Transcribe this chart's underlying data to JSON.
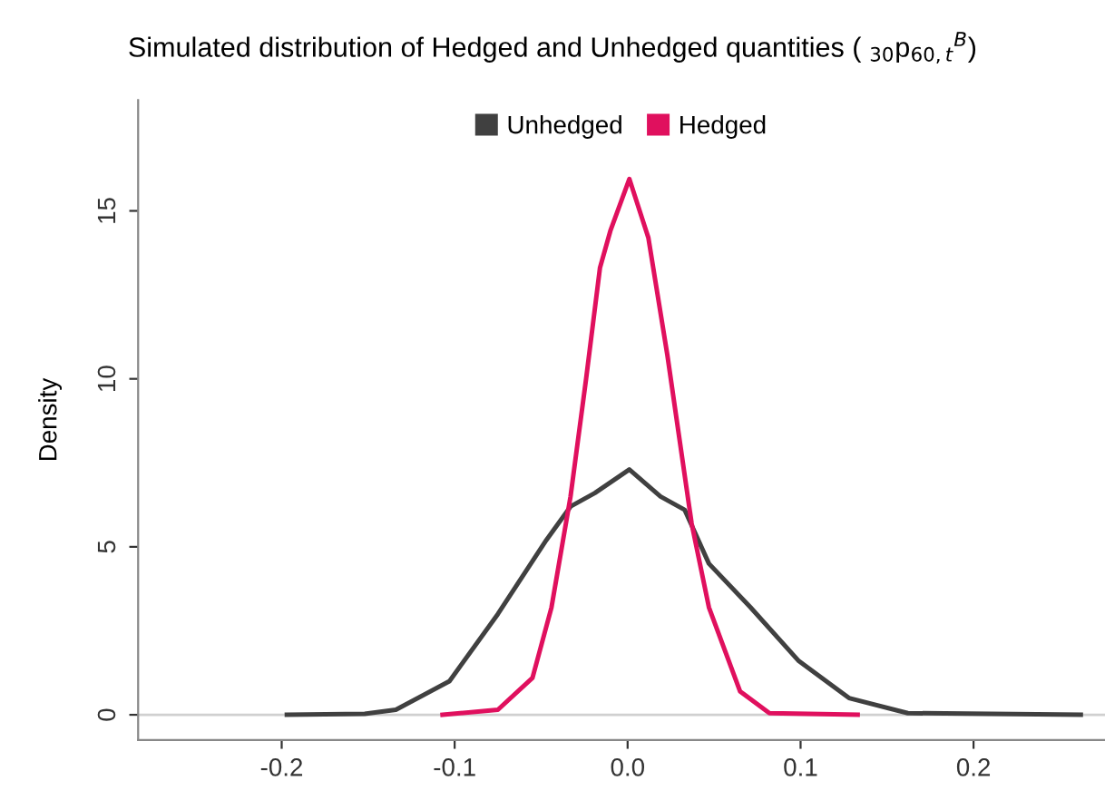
{
  "chart_data": {
    "type": "line",
    "title": "Simulated distribution of Hedged and Unhedged quantities ( $_{30}$p$_{60,t}$$^{B}$)",
    "ylabel": "Density",
    "series": [
      {
        "name": "Unhedged",
        "color": "#404040",
        "x": [
          -0.197,
          -0.152,
          -0.134,
          -0.103,
          -0.075,
          -0.047,
          -0.033,
          -0.019,
          0.001,
          0.019,
          0.033,
          0.047,
          0.071,
          0.099,
          0.128,
          0.162,
          0.262
        ],
        "values": [
          0,
          0.03,
          0.15,
          1.0,
          3.0,
          5.2,
          6.2,
          6.6,
          7.3,
          6.5,
          6.1,
          4.5,
          3.2,
          1.6,
          0.5,
          0.05,
          0
        ]
      },
      {
        "name": "Hedged",
        "color": "#e0105e",
        "x": [
          -0.107,
          -0.075,
          -0.055,
          -0.044,
          -0.033,
          -0.024,
          -0.016,
          -0.01,
          0.001,
          0.012,
          0.023,
          0.037,
          0.047,
          0.065,
          0.082,
          0.133
        ],
        "values": [
          0,
          0.15,
          1.1,
          3.2,
          6.5,
          10,
          13.3,
          14.4,
          15.95,
          14.2,
          10.7,
          5.7,
          3.2,
          0.7,
          0.05,
          0
        ]
      }
    ],
    "xlim": [
      -0.283,
      0.276
    ],
    "ylim": [
      -0.75,
      18.3
    ],
    "xticks": [
      -0.2,
      -0.1,
      {
        "value": 0,
        "label": "0.0"
      },
      0.1,
      0.2
    ],
    "yticks": [
      0,
      5,
      10,
      15
    ],
    "ref_lines": [
      {
        "axis": "y",
        "value": 0,
        "color": "#d0d0d0"
      }
    ],
    "legend": "top",
    "grid": false,
    "line_style": "solid"
  }
}
